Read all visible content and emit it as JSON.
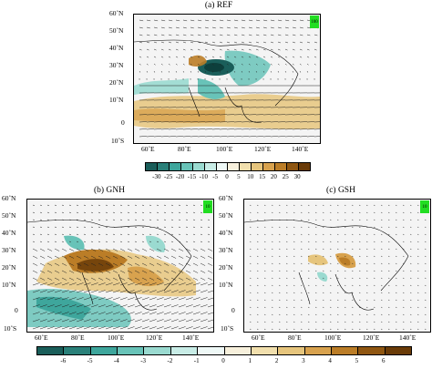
{
  "panels": {
    "a": {
      "title": "(a) REF",
      "ref_vector": "100"
    },
    "b": {
      "title": "(b) GNH",
      "ref_vector": "10"
    },
    "c": {
      "title": "(c) GSH",
      "ref_vector": "10"
    }
  },
  "lat_ticks": [
    "60˚N",
    "50˚N",
    "40˚N",
    "30˚N",
    "20˚N",
    "10˚N",
    "0",
    "10˚S"
  ],
  "lon_ticks": [
    "60˚E",
    "80˚E",
    "100˚E",
    "120˚E",
    "140˚E"
  ],
  "colorbar_top": {
    "labels": [
      "-30",
      "-25",
      "-20",
      "-15",
      "-10",
      "-5",
      "0",
      "5",
      "10",
      "15",
      "20",
      "25",
      "30"
    ],
    "colors": [
      "#1a5e5a",
      "#2a8079",
      "#3ea69c",
      "#68c3b8",
      "#9adad0",
      "#c8ece6",
      "#eef8f6",
      "#f7f0dc",
      "#f1dfad",
      "#e6c57d",
      "#d8a24e",
      "#bb7d27",
      "#8f5611",
      "#6a3b08"
    ]
  },
  "colorbar_bottom": {
    "labels": [
      "-6",
      "-5",
      "-4",
      "-3",
      "-2",
      "-1",
      "0",
      "1",
      "2",
      "3",
      "4",
      "5",
      "6"
    ],
    "colors": [
      "#1a5e5a",
      "#2a8079",
      "#3ea69c",
      "#68c3b8",
      "#9adad0",
      "#c8ece6",
      "#eef8f6",
      "#f7f0dc",
      "#f1dfad",
      "#e6c57d",
      "#d8a24e",
      "#bb7d27",
      "#8f5611",
      "#6a3b08"
    ]
  }
}
